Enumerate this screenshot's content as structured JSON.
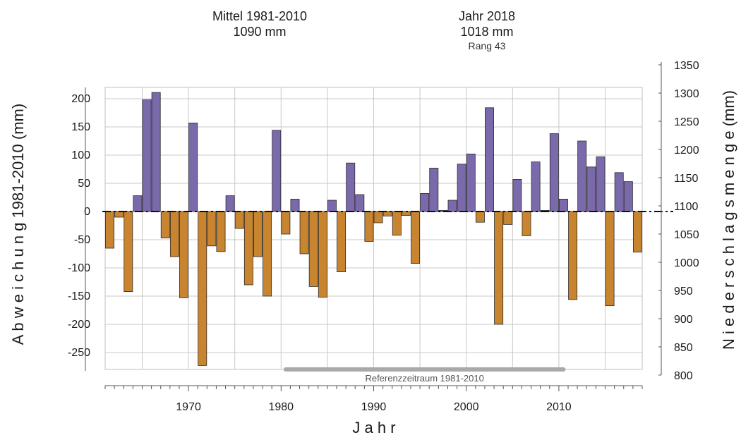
{
  "header": {
    "mean_label": "Mittel 1981-2010",
    "mean_value": "1090 mm",
    "year_label": "Jahr 2018",
    "year_value": "1018 mm",
    "rank": "Rang 43"
  },
  "chart_data": {
    "type": "bar",
    "title": "",
    "xlabel": "J a h r",
    "ylabel": "A b w e i c h u n g  1981-2010  (mm)",
    "ylabel_right": "N i e d e r s c h l a g s m e n g e  (mm)",
    "baseline_mm": 1090,
    "ylim": [
      -280,
      220
    ],
    "ylim_right": [
      810,
      1310
    ],
    "yticks_left": [
      -250,
      -200,
      -150,
      -100,
      -50,
      0,
      50,
      100,
      150,
      200
    ],
    "yticks_left_labels": [
      "-250",
      "-200",
      "-150",
      "-100",
      "-50",
      "0",
      "50",
      "100",
      "150",
      "200"
    ],
    "yticks_right": [
      800,
      850,
      900,
      950,
      1000,
      1050,
      1100,
      1150,
      1200,
      1250,
      1300,
      1350
    ],
    "yticks_right_labels": [
      "800",
      "850",
      "900",
      "950",
      "1000",
      "1050",
      "1100",
      "1150",
      "1200",
      "1250",
      "1300",
      "1350"
    ],
    "xticks": [
      1970,
      1980,
      1990,
      2000,
      2010
    ],
    "xticks_labels": [
      "1970",
      "1980",
      "1990",
      "2000",
      "2010"
    ],
    "years": [
      1961,
      1962,
      1963,
      1964,
      1965,
      1966,
      1967,
      1968,
      1969,
      1970,
      1971,
      1972,
      1973,
      1974,
      1975,
      1976,
      1977,
      1978,
      1979,
      1980,
      1981,
      1982,
      1983,
      1984,
      1985,
      1986,
      1987,
      1988,
      1989,
      1990,
      1991,
      1992,
      1993,
      1994,
      1995,
      1996,
      1997,
      1998,
      1999,
      2000,
      2001,
      2002,
      2003,
      2004,
      2005,
      2006,
      2007,
      2008,
      2009,
      2010,
      2011,
      2012,
      2013,
      2014,
      2015,
      2016,
      2017,
      2018
    ],
    "values": [
      -65,
      -10,
      -142,
      28,
      198,
      211,
      -47,
      -80,
      -153,
      157,
      -273,
      -61,
      -71,
      28,
      -30,
      -130,
      -80,
      -150,
      144,
      -40,
      22,
      -75,
      -133,
      -152,
      20,
      -107,
      86,
      30,
      -53,
      -20,
      -8,
      -42,
      -7,
      -92,
      32,
      77,
      2,
      20,
      84,
      102,
      -19,
      184,
      -200,
      -23,
      57,
      -43,
      88,
      2,
      138,
      22,
      -156,
      125,
      79,
      97,
      -167,
      69,
      53,
      -72
    ],
    "positive_color": "#7b6aab",
    "negative_color": "#c8842e",
    "reference_period": {
      "label": "Referenzzeitraum 1981-2010",
      "start": 1981,
      "end": 2010,
      "color": "#a9a9a9"
    },
    "grid": true,
    "legend": "none"
  }
}
